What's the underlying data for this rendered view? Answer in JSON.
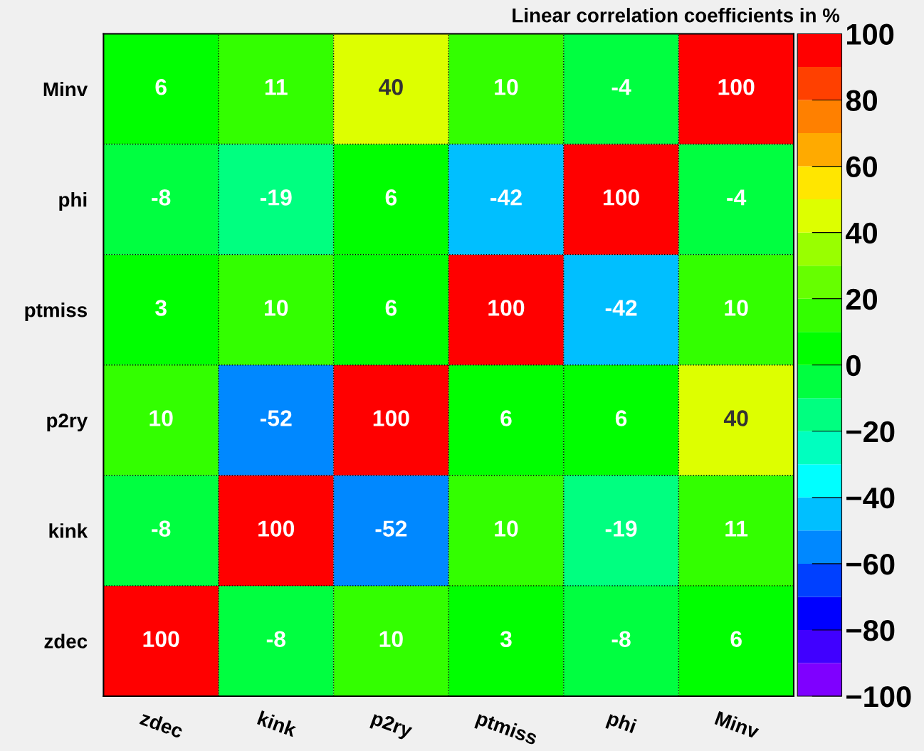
{
  "chart_data": {
    "type": "heatmap",
    "title": "Linear correlation coefficients in %",
    "categories": [
      "zdec",
      "kink",
      "p2ry",
      "ptmiss",
      "phi",
      "Minv"
    ],
    "y_categories": [
      "Minv",
      "phi",
      "ptmiss",
      "p2ry",
      "kink",
      "zdec"
    ],
    "cells": [
      [
        6,
        11,
        40,
        10,
        -4,
        100
      ],
      [
        -8,
        -19,
        6,
        -42,
        100,
        -4
      ],
      [
        3,
        10,
        6,
        100,
        -42,
        10
      ],
      [
        10,
        -52,
        100,
        6,
        6,
        40
      ],
      [
        -8,
        100,
        -52,
        10,
        -19,
        11
      ],
      [
        100,
        -8,
        10,
        3,
        -8,
        6
      ]
    ],
    "data_labels": true,
    "clim": [
      -100,
      100
    ],
    "cticks": [
      {
        "value": -100,
        "label": "−100"
      },
      {
        "value": -80,
        "label": "−80"
      },
      {
        "value": -60,
        "label": "−60"
      },
      {
        "value": -40,
        "label": "−40"
      },
      {
        "value": -20,
        "label": "−20"
      },
      0,
      20,
      40,
      60,
      80,
      100
    ],
    "colors": [
      "#7f00ff",
      "#4000ff",
      "#0000ff",
      "#0040ff",
      "#0088ff",
      "#00bfff",
      "#00ffff",
      "#00ffbf",
      "#00ff80",
      "#00ff40",
      "#00ff00",
      "#33ff00",
      "#66ff00",
      "#99ff00",
      "#ddff00",
      "#ffe600",
      "#ffaa00",
      "#ff8000",
      "#ff4000",
      "#ff0000"
    ],
    "grid": true,
    "line_style": "dotted"
  }
}
